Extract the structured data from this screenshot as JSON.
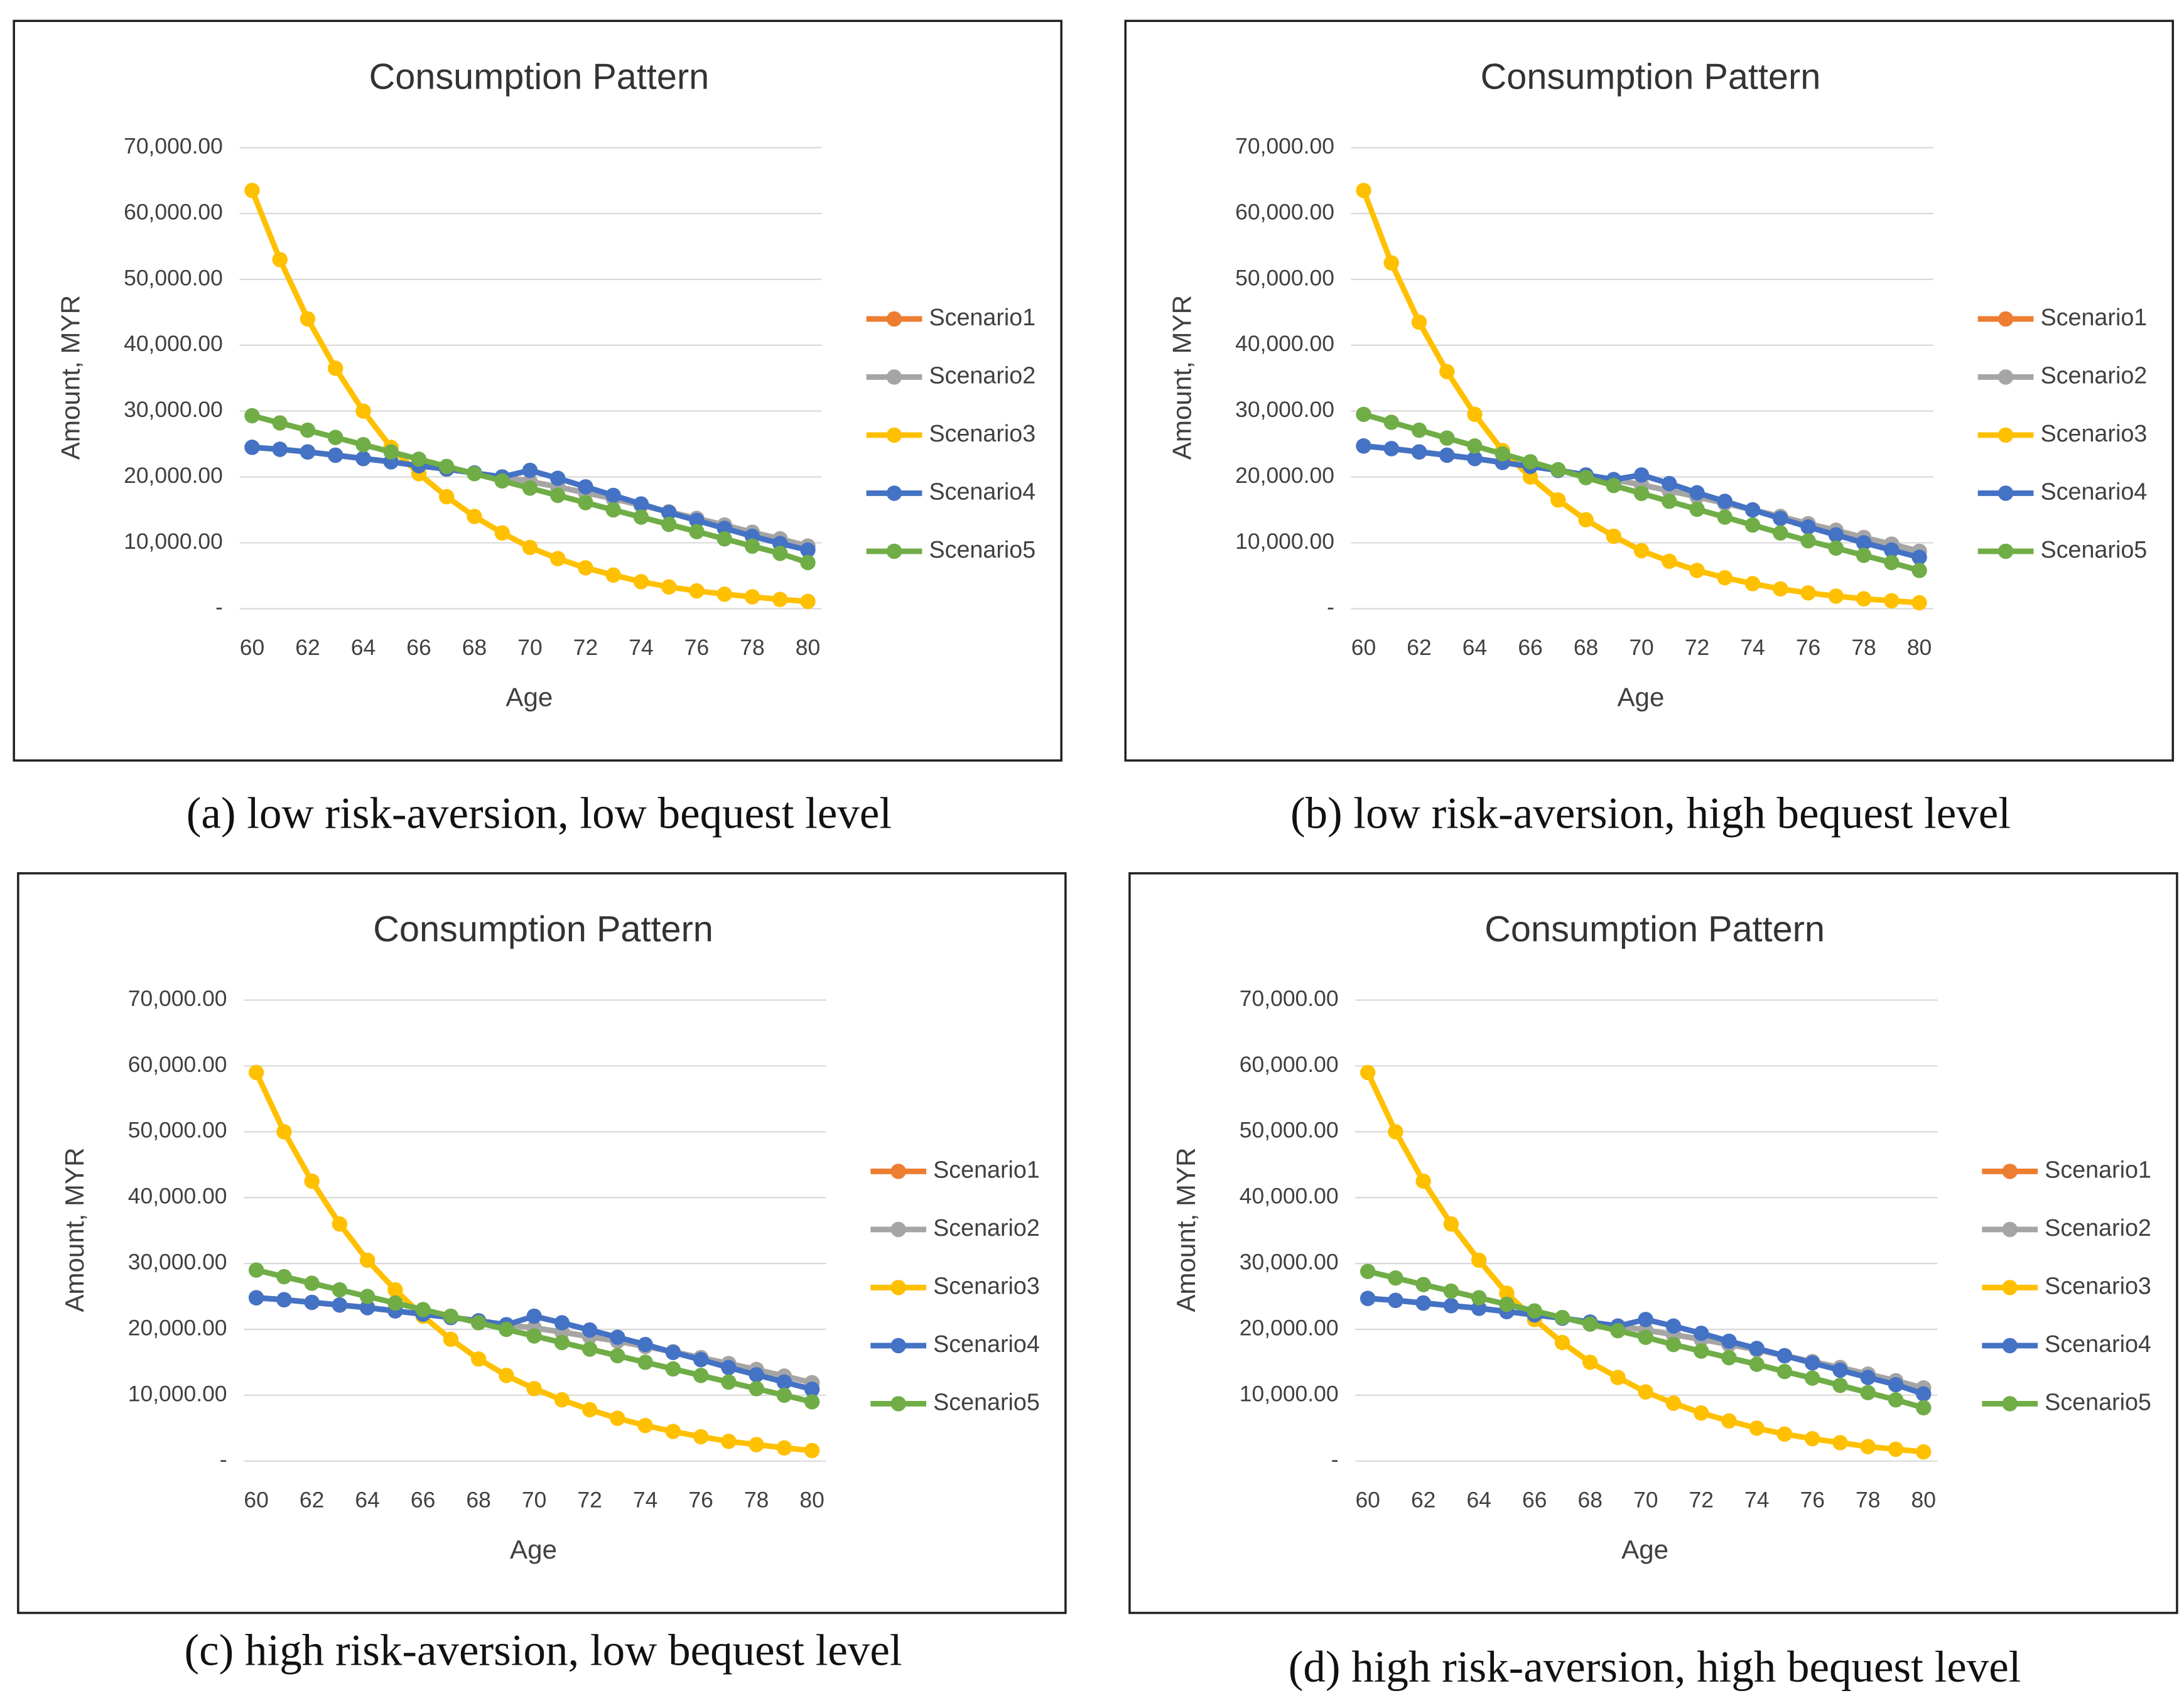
{
  "chart_data": [
    {
      "type": "line",
      "title": "Consumption Pattern",
      "ylabel": "Amount, MYR",
      "xlabel": "Age",
      "caption": "(a) low risk-aversion, low bequest level",
      "x": [
        60,
        61,
        62,
        63,
        64,
        65,
        66,
        67,
        68,
        69,
        70,
        71,
        72,
        73,
        74,
        75,
        76,
        77,
        78,
        79,
        80
      ],
      "xlim": [
        60,
        80
      ],
      "xticks": [
        60,
        62,
        64,
        66,
        68,
        70,
        72,
        74,
        76,
        78,
        80
      ],
      "ylim": [
        0,
        70000
      ],
      "yticks": [
        {
          "value": 0,
          "label": "-"
        },
        {
          "value": 10000,
          "label": "10,000.00"
        },
        {
          "value": 20000,
          "label": "20,000.00"
        },
        {
          "value": 30000,
          "label": "30,000.00"
        },
        {
          "value": 40000,
          "label": "40,000.00"
        },
        {
          "value": 50000,
          "label": "50,000.00"
        },
        {
          "value": 60000,
          "label": "60,000.00"
        },
        {
          "value": 70000,
          "label": "70,000.00"
        }
      ],
      "grid": true,
      "legend": "right",
      "series": [
        {
          "name": "Scenario1",
          "color": "#ED7D31",
          "values": [
            24500,
            24200,
            23800,
            23300,
            22800,
            22300,
            21700,
            21200,
            20600,
            20000,
            19300,
            18500,
            17600,
            16700,
            15700,
            14700,
            13700,
            12700,
            11600,
            10600,
            9500
          ]
        },
        {
          "name": "Scenario2",
          "color": "#A5A5A5",
          "values": [
            24500,
            24200,
            23800,
            23300,
            22800,
            22300,
            21700,
            21200,
            20600,
            20000,
            19300,
            18500,
            17600,
            16700,
            15700,
            14700,
            13700,
            12700,
            11600,
            10600,
            9500
          ]
        },
        {
          "name": "Scenario3",
          "color": "#FFC000",
          "values": [
            63500,
            53000,
            44000,
            36500,
            30000,
            24500,
            20500,
            17000,
            14000,
            11500,
            9300,
            7600,
            6200,
            5100,
            4100,
            3300,
            2700,
            2200,
            1800,
            1400,
            1100
          ]
        },
        {
          "name": "Scenario4",
          "color": "#4472C4",
          "values": [
            24500,
            24200,
            23800,
            23300,
            22800,
            22300,
            21700,
            21200,
            20600,
            20000,
            21000,
            19800,
            18500,
            17200,
            15900,
            14600,
            13400,
            12200,
            11000,
            9900,
            8900
          ]
        },
        {
          "name": "Scenario5",
          "color": "#70AD47",
          "values": [
            29300,
            28200,
            27100,
            26000,
            24900,
            23800,
            22700,
            21600,
            20500,
            19400,
            18300,
            17200,
            16100,
            15000,
            13900,
            12800,
            11700,
            10600,
            9500,
            8400,
            7000
          ]
        }
      ]
    },
    {
      "type": "line",
      "title": "Consumption Pattern",
      "ylabel": "Amount, MYR",
      "xlabel": "Age",
      "caption": "(b) low risk-aversion, high bequest level",
      "x": [
        60,
        61,
        62,
        63,
        64,
        65,
        66,
        67,
        68,
        69,
        70,
        71,
        72,
        73,
        74,
        75,
        76,
        77,
        78,
        79,
        80
      ],
      "xlim": [
        60,
        80
      ],
      "xticks": [
        60,
        62,
        64,
        66,
        68,
        70,
        72,
        74,
        76,
        78,
        80
      ],
      "ylim": [
        0,
        70000
      ],
      "yticks": [
        {
          "value": 0,
          "label": "-"
        },
        {
          "value": 10000,
          "label": "10,000.00"
        },
        {
          "value": 20000,
          "label": "20,000.00"
        },
        {
          "value": 30000,
          "label": "30,000.00"
        },
        {
          "value": 40000,
          "label": "40,000.00"
        },
        {
          "value": 50000,
          "label": "50,000.00"
        },
        {
          "value": 60000,
          "label": "60,000.00"
        },
        {
          "value": 70000,
          "label": "70,000.00"
        }
      ],
      "grid": true,
      "legend": "right",
      "series": [
        {
          "name": "Scenario1",
          "color": "#ED7D31",
          "values": [
            24700,
            24300,
            23800,
            23300,
            22800,
            22200,
            21600,
            21000,
            20300,
            19600,
            18800,
            17900,
            17000,
            16000,
            15000,
            14000,
            12900,
            11900,
            10800,
            9800,
            8700
          ]
        },
        {
          "name": "Scenario2",
          "color": "#A5A5A5",
          "values": [
            24700,
            24300,
            23800,
            23300,
            22800,
            22200,
            21600,
            21000,
            20300,
            19600,
            18800,
            17900,
            17000,
            16000,
            15000,
            14000,
            12900,
            11900,
            10800,
            9800,
            8700
          ]
        },
        {
          "name": "Scenario3",
          "color": "#FFC000",
          "values": [
            63500,
            52500,
            43500,
            36000,
            29500,
            24000,
            20000,
            16500,
            13500,
            11000,
            8800,
            7200,
            5800,
            4700,
            3800,
            3000,
            2400,
            1900,
            1500,
            1200,
            900
          ]
        },
        {
          "name": "Scenario4",
          "color": "#4472C4",
          "values": [
            24700,
            24300,
            23800,
            23300,
            22800,
            22200,
            21600,
            21000,
            20300,
            19600,
            20300,
            19000,
            17600,
            16300,
            15000,
            13700,
            12400,
            11200,
            10000,
            8900,
            7800
          ]
        },
        {
          "name": "Scenario5",
          "color": "#70AD47",
          "values": [
            29500,
            28300,
            27100,
            25900,
            24700,
            23500,
            22300,
            21100,
            19900,
            18700,
            17500,
            16300,
            15100,
            13900,
            12700,
            11500,
            10300,
            9200,
            8100,
            7000,
            5800
          ]
        }
      ]
    },
    {
      "type": "line",
      "title": "Consumption Pattern",
      "ylabel": "Amount, MYR",
      "xlabel": "Age",
      "caption": "(c) high risk-aversion, low bequest level",
      "x": [
        60,
        61,
        62,
        63,
        64,
        65,
        66,
        67,
        68,
        69,
        70,
        71,
        72,
        73,
        74,
        75,
        76,
        77,
        78,
        79,
        80
      ],
      "xlim": [
        60,
        80
      ],
      "xticks": [
        60,
        62,
        64,
        66,
        68,
        70,
        72,
        74,
        76,
        78,
        80
      ],
      "ylim": [
        0,
        70000
      ],
      "yticks": [
        {
          "value": 0,
          "label": "-"
        },
        {
          "value": 10000,
          "label": "10,000.00"
        },
        {
          "value": 20000,
          "label": "20,000.00"
        },
        {
          "value": 30000,
          "label": "30,000.00"
        },
        {
          "value": 40000,
          "label": "40,000.00"
        },
        {
          "value": 50000,
          "label": "50,000.00"
        },
        {
          "value": 60000,
          "label": "60,000.00"
        },
        {
          "value": 70000,
          "label": "70,000.00"
        }
      ],
      "grid": true,
      "legend": "right",
      "series": [
        {
          "name": "Scenario1",
          "color": "#ED7D31",
          "values": [
            24800,
            24500,
            24100,
            23700,
            23300,
            22800,
            22300,
            21800,
            21300,
            20700,
            20200,
            19600,
            18900,
            18200,
            17400,
            16600,
            15700,
            14800,
            13900,
            12900,
            11900
          ]
        },
        {
          "name": "Scenario2",
          "color": "#A5A5A5",
          "values": [
            24800,
            24500,
            24100,
            23700,
            23300,
            22800,
            22300,
            21800,
            21300,
            20700,
            20200,
            19600,
            18900,
            18200,
            17400,
            16600,
            15700,
            14800,
            13900,
            12900,
            11900
          ]
        },
        {
          "name": "Scenario3",
          "color": "#FFC000",
          "values": [
            59000,
            50000,
            42500,
            36000,
            30500,
            26000,
            22000,
            18500,
            15500,
            13000,
            11000,
            9300,
            7800,
            6500,
            5400,
            4500,
            3700,
            3000,
            2500,
            2000,
            1600
          ]
        },
        {
          "name": "Scenario4",
          "color": "#4472C4",
          "values": [
            24800,
            24500,
            24100,
            23700,
            23300,
            22800,
            22300,
            21800,
            21300,
            20700,
            22000,
            21000,
            19900,
            18800,
            17700,
            16500,
            15400,
            14200,
            13100,
            12000,
            10900
          ]
        },
        {
          "name": "Scenario5",
          "color": "#70AD47",
          "values": [
            29000,
            28000,
            27000,
            26000,
            25000,
            24000,
            23000,
            22000,
            21000,
            20000,
            19000,
            18000,
            17000,
            16000,
            15000,
            14000,
            13000,
            12000,
            11000,
            10000,
            9000
          ]
        }
      ]
    },
    {
      "type": "line",
      "title": "Consumption Pattern",
      "ylabel": "Amount, MYR",
      "xlabel": "Age",
      "caption": "(d) high risk-aversion, high bequest level",
      "x": [
        60,
        61,
        62,
        63,
        64,
        65,
        66,
        67,
        68,
        69,
        70,
        71,
        72,
        73,
        74,
        75,
        76,
        77,
        78,
        79,
        80
      ],
      "xlim": [
        60,
        80
      ],
      "xticks": [
        60,
        62,
        64,
        66,
        68,
        70,
        72,
        74,
        76,
        78,
        80
      ],
      "ylim": [
        0,
        70000
      ],
      "yticks": [
        {
          "value": 0,
          "label": "-"
        },
        {
          "value": 10000,
          "label": "10,000.00"
        },
        {
          "value": 20000,
          "label": "20,000.00"
        },
        {
          "value": 30000,
          "label": "30,000.00"
        },
        {
          "value": 40000,
          "label": "40,000.00"
        },
        {
          "value": 50000,
          "label": "50,000.00"
        },
        {
          "value": 60000,
          "label": "60,000.00"
        },
        {
          "value": 70000,
          "label": "70,000.00"
        }
      ],
      "grid": true,
      "legend": "right",
      "series": [
        {
          "name": "Scenario1",
          "color": "#ED7D31",
          "values": [
            24700,
            24400,
            24000,
            23600,
            23200,
            22700,
            22200,
            21700,
            21100,
            20500,
            19900,
            19200,
            18500,
            17700,
            16900,
            16000,
            15100,
            14200,
            13200,
            12200,
            11100
          ]
        },
        {
          "name": "Scenario2",
          "color": "#A5A5A5",
          "values": [
            24700,
            24400,
            24000,
            23600,
            23200,
            22700,
            22200,
            21700,
            21100,
            20500,
            19900,
            19200,
            18500,
            17700,
            16900,
            16000,
            15100,
            14200,
            13200,
            12200,
            11100
          ]
        },
        {
          "name": "Scenario3",
          "color": "#FFC000",
          "values": [
            59000,
            50000,
            42500,
            36000,
            30500,
            25500,
            21500,
            18000,
            15000,
            12700,
            10500,
            8800,
            7300,
            6100,
            5000,
            4100,
            3400,
            2800,
            2200,
            1800,
            1400
          ]
        },
        {
          "name": "Scenario4",
          "color": "#4472C4",
          "values": [
            24700,
            24400,
            24000,
            23600,
            23200,
            22700,
            22200,
            21700,
            21100,
            20500,
            21500,
            20500,
            19400,
            18200,
            17100,
            16000,
            14900,
            13800,
            12700,
            11600,
            10200
          ]
        },
        {
          "name": "Scenario5",
          "color": "#70AD47",
          "values": [
            28800,
            27800,
            26800,
            25800,
            24800,
            23800,
            22800,
            21800,
            20800,
            19800,
            18800,
            17700,
            16700,
            15700,
            14700,
            13600,
            12600,
            11500,
            10400,
            9300,
            8100
          ]
        }
      ]
    }
  ]
}
